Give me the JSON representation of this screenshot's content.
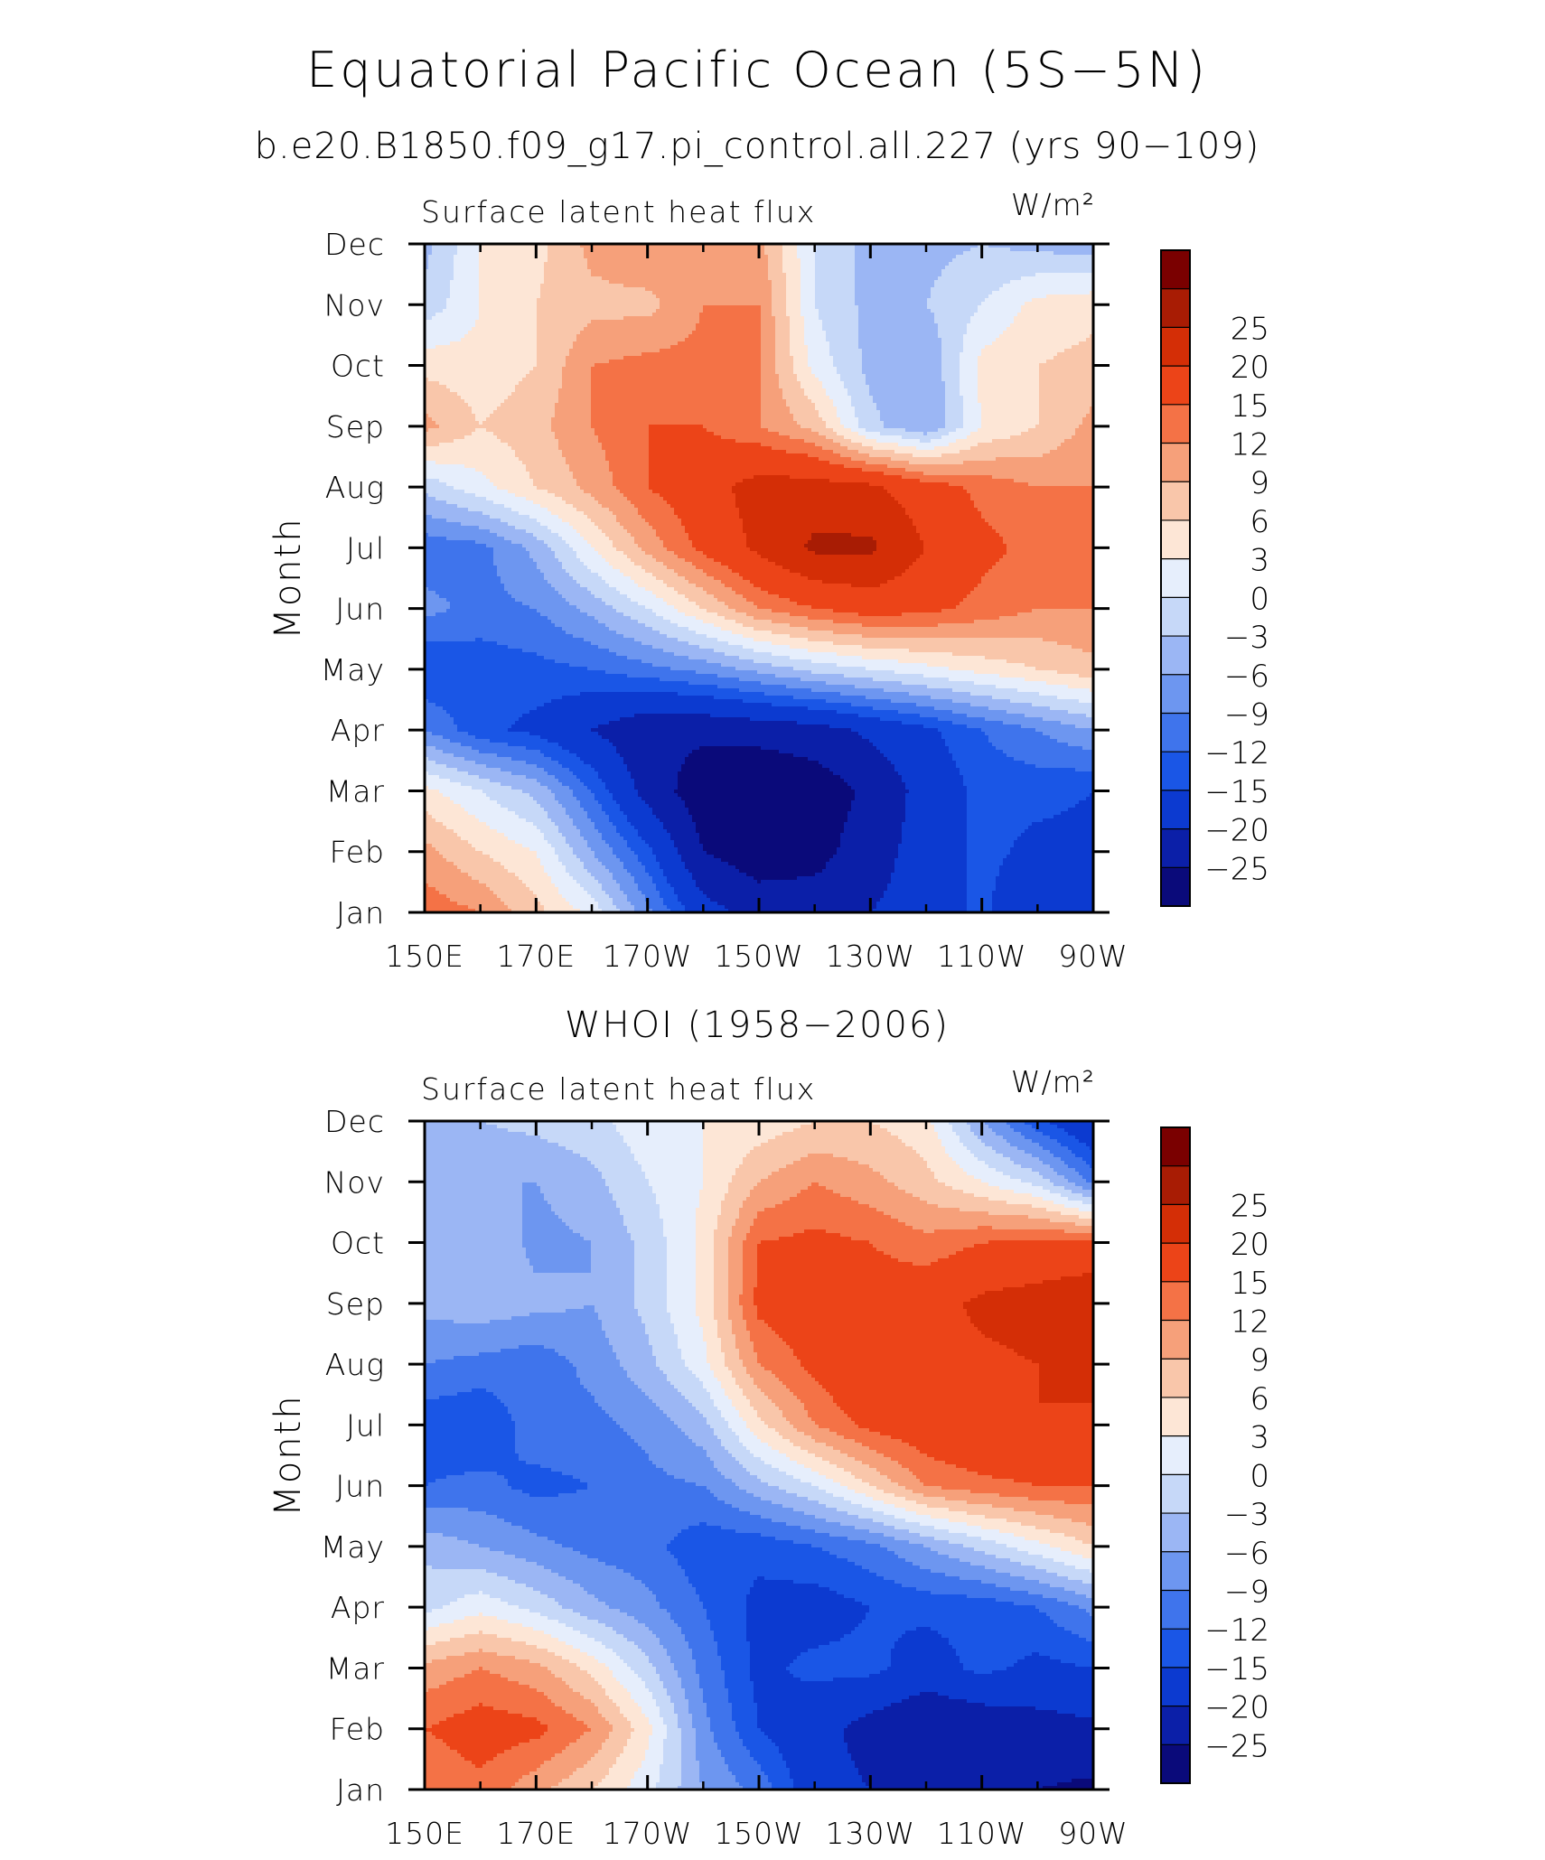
{
  "title": "Equatorial Pacific Ocean (5S−5N)",
  "subtitle": "b.e20.B1850.f09_g17.pi_control.all.227 (yrs 90−109)",
  "panel2_title": "WHOI (1958−2006)",
  "chart_data": [
    {
      "type": "heatmap",
      "panel_title": "",
      "left_label": "Surface latent heat flux",
      "units": "W/m²",
      "ylabel": "Month",
      "x_ticks": [
        "150E",
        "170E",
        "170W",
        "150W",
        "130W",
        "110W",
        "90W"
      ],
      "x_values": [
        150,
        170,
        190,
        210,
        230,
        250,
        270
      ],
      "xlim": [
        150,
        270
      ],
      "y_ticks": [
        "Jan",
        "Feb",
        "Mar",
        "Apr",
        "May",
        "Jun",
        "Jul",
        "Aug",
        "Sep",
        "Oct",
        "Nov",
        "Dec"
      ],
      "ylim": [
        1,
        12
      ],
      "colorbar_levels": [
        -25,
        -20,
        -15,
        -12,
        -9,
        -6,
        -3,
        0,
        3,
        6,
        9,
        12,
        15,
        20,
        25
      ],
      "colorbar_colors": [
        "#0a0a7a",
        "#0b1fa8",
        "#0c3ad0",
        "#1a56e6",
        "#3f74ec",
        "#6d96f0",
        "#9bb6f4",
        "#c6d8f8",
        "#e6eefc",
        "#fde6d6",
        "#f9c6aa",
        "#f6a07a",
        "#f47246",
        "#ec4418",
        "#d42e06",
        "#a81c04",
        "#7a0000"
      ],
      "grid_x": [
        150,
        160,
        170,
        180,
        190,
        200,
        210,
        220,
        230,
        240,
        250,
        260,
        270
      ],
      "grid_y": [
        1,
        2,
        3,
        4,
        5,
        6,
        7,
        8,
        9,
        10,
        11,
        12
      ],
      "values": [
        [
          14,
          12,
          7,
          2,
          -8,
          -18,
          -22,
          -22,
          -20,
          -18,
          -14,
          -20,
          -20
        ],
        [
          10,
          6,
          3,
          -6,
          -14,
          -25,
          -28,
          -27,
          -22,
          -18,
          -14,
          -16,
          -16
        ],
        [
          4,
          0,
          -4,
          -12,
          -22,
          -28,
          -30,
          -28,
          -24,
          -18,
          -14,
          -14,
          -15
        ],
        [
          -9,
          -14,
          -16,
          -20,
          -24,
          -24,
          -23,
          -22,
          -19,
          -16,
          -12,
          -9,
          -6
        ],
        [
          -15,
          -14,
          -13,
          -12,
          -10,
          -8,
          -5,
          -2,
          0,
          2,
          4,
          6,
          8
        ],
        [
          -8,
          -10,
          -9,
          -5,
          0,
          6,
          12,
          15,
          17,
          16,
          14,
          12,
          12
        ],
        [
          -11,
          -10,
          -5,
          3,
          10,
          16,
          21,
          26,
          26,
          20,
          16,
          14,
          13
        ],
        [
          -2,
          2,
          6,
          10,
          15,
          18,
          22,
          22,
          21,
          17,
          14,
          12,
          12
        ],
        [
          10,
          6,
          8,
          12,
          15,
          15,
          12,
          8,
          -2,
          -6,
          3,
          6,
          10
        ],
        [
          5,
          4,
          6,
          12,
          13,
          13,
          12,
          2,
          -4,
          -6,
          4,
          6,
          7
        ],
        [
          -2,
          3,
          6,
          8,
          8,
          12,
          12,
          0,
          -4,
          -3,
          0,
          4,
          5
        ],
        [
          -4,
          3,
          5,
          10,
          12,
          10,
          10,
          0,
          -4,
          -4,
          -3,
          -4,
          -5
        ]
      ]
    },
    {
      "type": "heatmap",
      "panel_title": "WHOI (1958−2006)",
      "left_label": "Surface latent heat flux",
      "units": "W/m²",
      "ylabel": "Month",
      "x_ticks": [
        "150E",
        "170E",
        "170W",
        "150W",
        "130W",
        "110W",
        "90W"
      ],
      "x_values": [
        150,
        170,
        190,
        210,
        230,
        250,
        270
      ],
      "xlim": [
        150,
        270
      ],
      "y_ticks": [
        "Jan",
        "Feb",
        "Mar",
        "Apr",
        "May",
        "Jun",
        "Jul",
        "Aug",
        "Sep",
        "Oct",
        "Nov",
        "Dec"
      ],
      "ylim": [
        1,
        12
      ],
      "colorbar_levels": [
        -25,
        -20,
        -15,
        -12,
        -9,
        -6,
        -3,
        0,
        3,
        6,
        9,
        12,
        15,
        20,
        25
      ],
      "colorbar_colors": [
        "#0a0a7a",
        "#0b1fa8",
        "#0c3ad0",
        "#1a56e6",
        "#3f74ec",
        "#6d96f0",
        "#9bb6f4",
        "#c6d8f8",
        "#e6eefc",
        "#fde6d6",
        "#f9c6aa",
        "#f6a07a",
        "#f47246",
        "#ec4418",
        "#d42e06",
        "#a81c04",
        "#7a0000"
      ],
      "grid_x": [
        150,
        160,
        170,
        180,
        190,
        200,
        210,
        220,
        230,
        240,
        250,
        260,
        270
      ],
      "grid_y": [
        1,
        2,
        3,
        4,
        5,
        6,
        7,
        8,
        9,
        10,
        11,
        12
      ],
      "values": [
        [
          12,
          14,
          10,
          6,
          1,
          -6,
          -10,
          -18,
          -20,
          -20,
          -22,
          -25,
          -26
        ],
        [
          15,
          17,
          16,
          12,
          4,
          -8,
          -15,
          -18,
          -22,
          -25,
          -24,
          -22,
          -21
        ],
        [
          10,
          12,
          10,
          5,
          -2,
          -10,
          -16,
          -14,
          -14,
          -17,
          -14,
          -16,
          -15
        ],
        [
          -1,
          2,
          -1,
          -5,
          -8,
          -12,
          -16,
          -17,
          -15,
          -14,
          -14,
          -12,
          -8
        ],
        [
          -4,
          -6,
          -8,
          -10,
          -11,
          -14,
          -14,
          -12,
          -10,
          -6,
          -2,
          2,
          6
        ],
        [
          -12,
          -11,
          -13,
          -12,
          -10,
          -9,
          -4,
          0,
          6,
          12,
          14,
          15,
          15
        ],
        [
          -14,
          -15,
          -10,
          -10,
          -8,
          -4,
          5,
          12,
          16,
          18,
          20,
          20,
          19
        ],
        [
          -9,
          -10,
          -11,
          -8,
          -4,
          2,
          12,
          16,
          20,
          19,
          19,
          20,
          22
        ],
        [
          -5,
          -4,
          -5,
          -6,
          -2,
          4,
          16,
          18,
          17,
          18,
          21,
          22,
          24
        ],
        [
          -5,
          -3,
          -7,
          -6,
          -2,
          4,
          15,
          16,
          15,
          13,
          15,
          16,
          16
        ],
        [
          -6,
          -6,
          -6,
          -4,
          0,
          3,
          9,
          12,
          10,
          7,
          3,
          -1,
          -10
        ],
        [
          -3,
          -3,
          -2,
          -1,
          2,
          3,
          4,
          6,
          6,
          4,
          -6,
          -14,
          -20
        ]
      ]
    }
  ]
}
